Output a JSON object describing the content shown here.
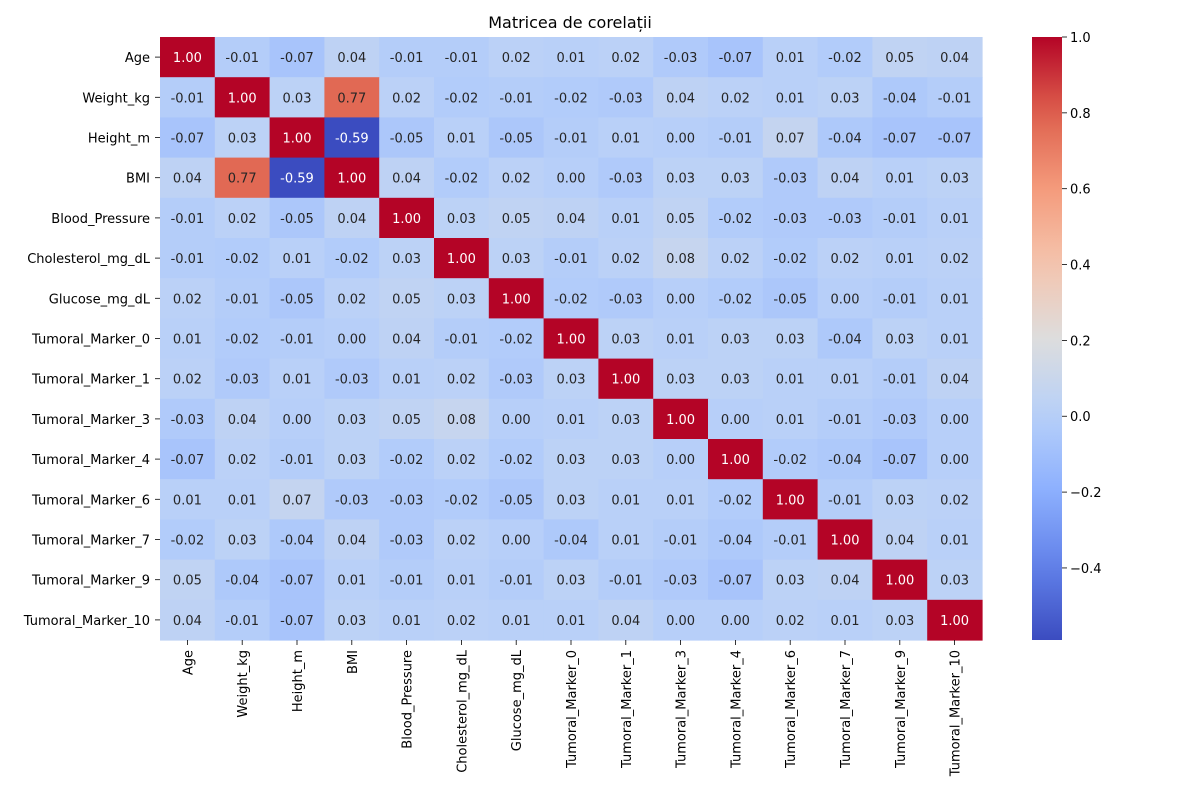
{
  "chart_data": {
    "type": "heatmap",
    "title": "Matricea de corelații",
    "xlabel": "",
    "ylabel": "",
    "colormap": "coolwarm",
    "value_range": [
      -0.59,
      1.0
    ],
    "annotated": true,
    "value_format": "2 decimals",
    "colorbar": {
      "placement": "right",
      "ticks": [
        -0.4,
        -0.2,
        0.0,
        0.2,
        0.4,
        0.6,
        0.8,
        1.0
      ],
      "tick_labels": [
        "−0.4",
        "−0.2",
        "0.0",
        "0.2",
        "0.4",
        "0.6",
        "0.8",
        "1.0"
      ]
    },
    "rows": [
      "Age",
      "Weight_kg",
      "Height_m",
      "BMI",
      "Blood_Pressure",
      "Cholesterol_mg_dL",
      "Glucose_mg_dL",
      "Tumoral_Marker_0",
      "Tumoral_Marker_1",
      "Tumoral_Marker_3",
      "Tumoral_Marker_4",
      "Tumoral_Marker_6",
      "Tumoral_Marker_7",
      "Tumoral_Marker_9",
      "Tumoral_Marker_10"
    ],
    "columns": [
      "Age",
      "Weight_kg",
      "Height_m",
      "BMI",
      "Blood_Pressure",
      "Cholesterol_mg_dL",
      "Glucose_mg_dL",
      "Tumoral_Marker_0",
      "Tumoral_Marker_1",
      "Tumoral_Marker_3",
      "Tumoral_Marker_4",
      "Tumoral_Marker_6",
      "Tumoral_Marker_7",
      "Tumoral_Marker_9",
      "Tumoral_Marker_10"
    ],
    "values": [
      [
        1.0,
        -0.01,
        -0.07,
        0.04,
        -0.01,
        -0.01,
        0.02,
        0.01,
        0.02,
        -0.03,
        -0.07,
        0.01,
        -0.02,
        0.05,
        0.04
      ],
      [
        -0.01,
        1.0,
        0.03,
        0.77,
        0.02,
        -0.02,
        -0.01,
        -0.02,
        -0.03,
        0.04,
        0.02,
        0.01,
        0.03,
        -0.04,
        -0.01
      ],
      [
        -0.07,
        0.03,
        1.0,
        -0.59,
        -0.05,
        0.01,
        -0.05,
        -0.01,
        0.01,
        -0.0,
        -0.01,
        0.07,
        -0.04,
        -0.07,
        -0.07
      ],
      [
        0.04,
        0.77,
        -0.59,
        1.0,
        0.04,
        -0.02,
        0.02,
        -0.0,
        -0.03,
        0.03,
        0.03,
        -0.03,
        0.04,
        0.01,
        0.03
      ],
      [
        -0.01,
        0.02,
        -0.05,
        0.04,
        1.0,
        0.03,
        0.05,
        0.04,
        0.01,
        0.05,
        -0.02,
        -0.03,
        -0.03,
        -0.01,
        0.01
      ],
      [
        -0.01,
        -0.02,
        0.01,
        -0.02,
        0.03,
        1.0,
        0.03,
        -0.01,
        0.02,
        0.08,
        0.02,
        -0.02,
        0.02,
        0.01,
        0.02
      ],
      [
        0.02,
        -0.01,
        -0.05,
        0.02,
        0.05,
        0.03,
        1.0,
        -0.02,
        -0.03,
        0.0,
        -0.02,
        -0.05,
        -0.0,
        -0.01,
        0.01
      ],
      [
        0.01,
        -0.02,
        -0.01,
        -0.0,
        0.04,
        -0.01,
        -0.02,
        1.0,
        0.03,
        0.01,
        0.03,
        0.03,
        -0.04,
        0.03,
        0.01
      ],
      [
        0.02,
        -0.03,
        0.01,
        -0.03,
        0.01,
        0.02,
        -0.03,
        0.03,
        1.0,
        0.03,
        0.03,
        0.01,
        0.01,
        -0.01,
        0.04
      ],
      [
        -0.03,
        0.04,
        -0.0,
        0.03,
        0.05,
        0.08,
        0.0,
        0.01,
        0.03,
        1.0,
        0.0,
        0.01,
        -0.01,
        -0.03,
        -0.0
      ],
      [
        -0.07,
        0.02,
        -0.01,
        0.03,
        -0.02,
        0.02,
        -0.02,
        0.03,
        0.03,
        0.0,
        1.0,
        -0.02,
        -0.04,
        -0.07,
        -0.0
      ],
      [
        0.01,
        0.01,
        0.07,
        -0.03,
        -0.03,
        -0.02,
        -0.05,
        0.03,
        0.01,
        0.01,
        -0.02,
        1.0,
        -0.01,
        0.03,
        0.02
      ],
      [
        -0.02,
        0.03,
        -0.04,
        0.04,
        -0.03,
        0.02,
        -0.0,
        -0.04,
        0.01,
        -0.01,
        -0.04,
        -0.01,
        1.0,
        0.04,
        0.01
      ],
      [
        0.05,
        -0.04,
        -0.07,
        0.01,
        -0.01,
        0.01,
        -0.01,
        0.03,
        -0.01,
        -0.03,
        -0.07,
        0.03,
        0.04,
        1.0,
        0.03
      ],
      [
        0.04,
        -0.01,
        -0.07,
        0.03,
        0.01,
        0.02,
        0.01,
        0.01,
        0.04,
        -0.0,
        -0.0,
        0.02,
        0.01,
        0.03,
        1.0
      ]
    ]
  }
}
